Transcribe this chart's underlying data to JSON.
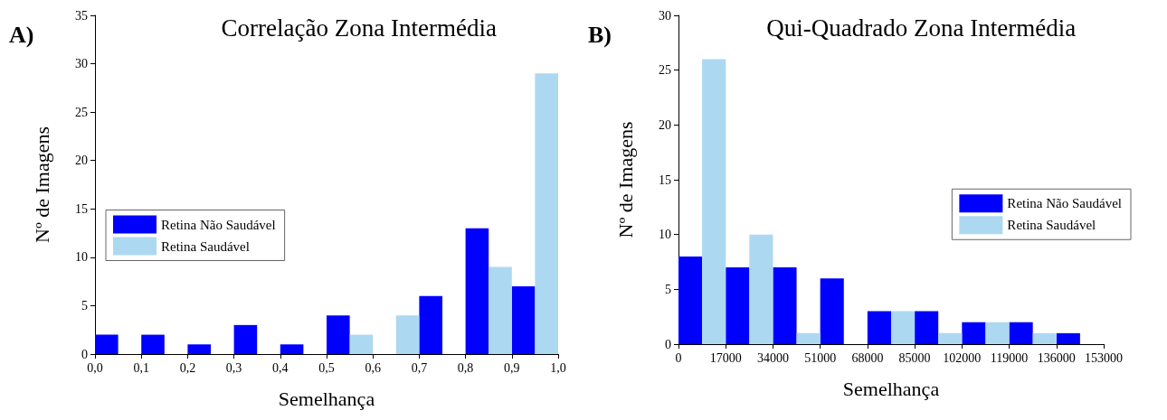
{
  "chart_data": [
    {
      "type": "histogram",
      "title": "Correlação Zona Intermédia",
      "xlabel": "Semelhança",
      "ylabel": "Nº de Imagens",
      "annotations": [
        "A)"
      ],
      "bins": [
        0,
        0.1,
        0.2,
        0.3,
        0.4,
        0.5,
        0.6,
        0.7,
        0.8,
        0.9,
        1.0
      ],
      "series": [
        {
          "name": "Retina Não Saudável",
          "color": "#0000ff",
          "values": [
            2,
            2,
            1,
            3,
            1,
            4,
            0,
            6,
            13,
            7
          ]
        },
        {
          "name": "Retina Saudável",
          "color": "#add8f2",
          "values": [
            0,
            0,
            0,
            0,
            0,
            2,
            4,
            0,
            9,
            29
          ]
        }
      ],
      "xlim": [
        0,
        1.0
      ],
      "xticks": [
        {
          "value": 0,
          "label": "0,0"
        },
        {
          "value": 0.1,
          "label": "0,1"
        },
        {
          "value": 0.2,
          "label": "0,2"
        },
        {
          "value": 0.3,
          "label": "0,3"
        },
        {
          "value": 0.4,
          "label": "0,4"
        },
        {
          "value": 0.5,
          "label": "0,5"
        },
        {
          "value": 0.6,
          "label": "0,6"
        },
        {
          "value": 0.7,
          "label": "0,7"
        },
        {
          "value": 0.8,
          "label": "0,8"
        },
        {
          "value": 0.9,
          "label": "0,9"
        },
        {
          "value": 1.0,
          "label": "1,0"
        }
      ],
      "ylim": [
        0,
        35
      ],
      "yticks": [
        0,
        5,
        10,
        15,
        20,
        25,
        30,
        35
      ],
      "legend": "left"
    },
    {
      "type": "histogram",
      "title": "Qui-Quadrado Zona Intermédia",
      "xlabel": "Semelhança",
      "ylabel": "Nº de Imagens",
      "annotations": [
        "B)"
      ],
      "bins": [
        0,
        17000,
        34000,
        51000,
        68000,
        85000,
        102000,
        119000,
        136000,
        153000
      ],
      "series": [
        {
          "name": "Retina Não Saudável",
          "color": "#0000ff",
          "values": [
            8,
            7,
            7,
            6,
            3,
            3,
            2,
            2,
            1
          ]
        },
        {
          "name": "Retina Saudável",
          "color": "#add8f2",
          "values": [
            26,
            10,
            1,
            0,
            3,
            1,
            2,
            1,
            0
          ]
        }
      ],
      "xlim": [
        0,
        153000
      ],
      "xticks": [
        0,
        17000,
        34000,
        51000,
        68000,
        85000,
        102000,
        119000,
        136000,
        153000
      ],
      "ylim": [
        0,
        30
      ],
      "yticks": [
        0,
        5,
        10,
        15,
        20,
        25,
        30
      ],
      "legend": "right"
    }
  ]
}
